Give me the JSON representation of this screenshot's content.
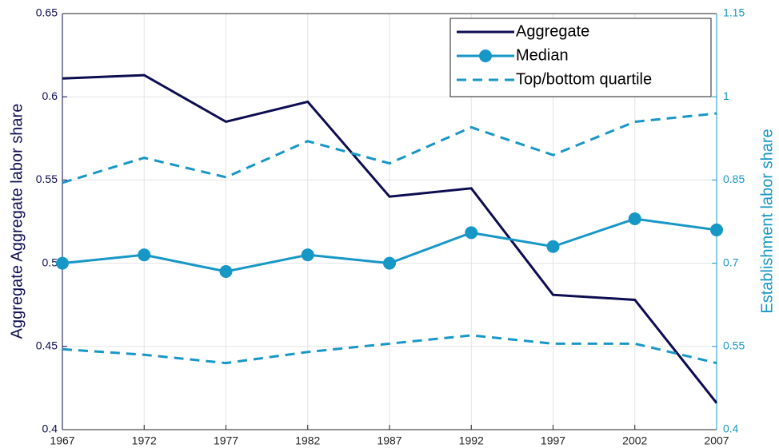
{
  "chart_data": {
    "type": "line",
    "x": [
      1967,
      1972,
      1977,
      1982,
      1987,
      1992,
      1997,
      2002,
      2007
    ],
    "xlim": [
      1967,
      2007
    ],
    "xticks": [
      1967,
      1972,
      1977,
      1982,
      1987,
      1992,
      1997,
      2002,
      2007
    ],
    "ylabel": "Aggregate Aggregate labor share",
    "y2label": "Establishment labor share",
    "ylim": [
      0.4,
      0.65
    ],
    "yticks": [
      0.4,
      0.45,
      0.5,
      0.55,
      0.6,
      0.65
    ],
    "y2lim": [
      0.4,
      1.15
    ],
    "y2ticks": [
      0.4,
      0.55,
      0.7,
      0.85,
      1,
      1.15
    ],
    "grid": true,
    "legend": "upper right",
    "left_axis_color": "#0c0c50",
    "right_axis_color": "#1797c6",
    "series": [
      {
        "name": "Aggregate",
        "color": "#0c0c50",
        "style": "solid",
        "marker": false,
        "values": [
          0.611,
          0.613,
          0.585,
          0.597,
          0.54,
          0.545,
          0.481,
          0.478,
          0.416
        ]
      },
      {
        "name": "Median",
        "color": "#1797c6",
        "style": "solid",
        "marker": true,
        "axis": "y2",
        "values": [
          0.7,
          0.715,
          0.685,
          0.715,
          0.7,
          0.755,
          0.73,
          0.78,
          0.76
        ]
      },
      {
        "name": "Top/bottom quartile",
        "color": "#1797c6",
        "style": "dashed",
        "marker": false,
        "axis": "y2",
        "values": [
          0.845,
          0.89,
          0.855,
          0.92,
          0.88,
          0.945,
          0.895,
          0.955,
          0.97
        ]
      },
      {
        "color": "#1797c6",
        "style": "dashed",
        "marker": false,
        "axis": "y2",
        "values": [
          0.545,
          0.535,
          0.52,
          0.54,
          0.555,
          0.57,
          0.555,
          0.555,
          0.52
        ]
      }
    ]
  }
}
